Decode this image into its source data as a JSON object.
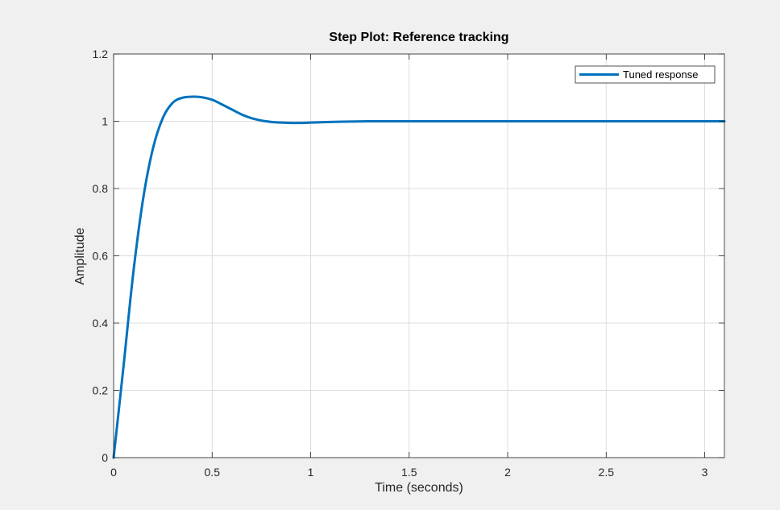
{
  "chart_data": {
    "type": "line",
    "title": "Step Plot: Reference tracking",
    "xlabel": "Time (seconds)",
    "ylabel": "Amplitude",
    "xlim": [
      0,
      3.1
    ],
    "ylim": [
      0,
      1.2
    ],
    "xticks": [
      0,
      0.5,
      1,
      1.5,
      2,
      2.5,
      3
    ],
    "xtick_labels": [
      "0",
      "0.5",
      "1",
      "1.5",
      "2",
      "2.5",
      "3"
    ],
    "yticks": [
      0,
      0.2,
      0.4,
      0.6,
      0.8,
      1,
      1.2
    ],
    "ytick_labels": [
      "0",
      "0.2",
      "0.4",
      "0.6",
      "0.8",
      "1",
      "1.2"
    ],
    "grid": true,
    "legend_position": "top-right",
    "series": [
      {
        "name": "Tuned response",
        "color": "#0072bd",
        "x": [
          0,
          0.05,
          0.1,
          0.15,
          0.2,
          0.25,
          0.3,
          0.35,
          0.4,
          0.44,
          0.5,
          0.55,
          0.6,
          0.65,
          0.7,
          0.75,
          0.8,
          0.85,
          0.9,
          0.95,
          1.0,
          1.05,
          1.1,
          1.2,
          1.3,
          1.4,
          1.5,
          1.6,
          1.8,
          2.0,
          2.5,
          3.0,
          3.1
        ],
        "y": [
          0,
          0.27,
          0.55,
          0.77,
          0.92,
          1.01,
          1.055,
          1.07,
          1.073,
          1.072,
          1.064,
          1.05,
          1.035,
          1.02,
          1.009,
          1.002,
          0.998,
          0.996,
          0.995,
          0.995,
          0.996,
          0.997,
          0.998,
          0.999,
          1.0,
          1.0,
          1.0,
          1.0,
          1.0,
          1.0,
          1.0,
          1.0,
          1.0
        ]
      }
    ]
  }
}
